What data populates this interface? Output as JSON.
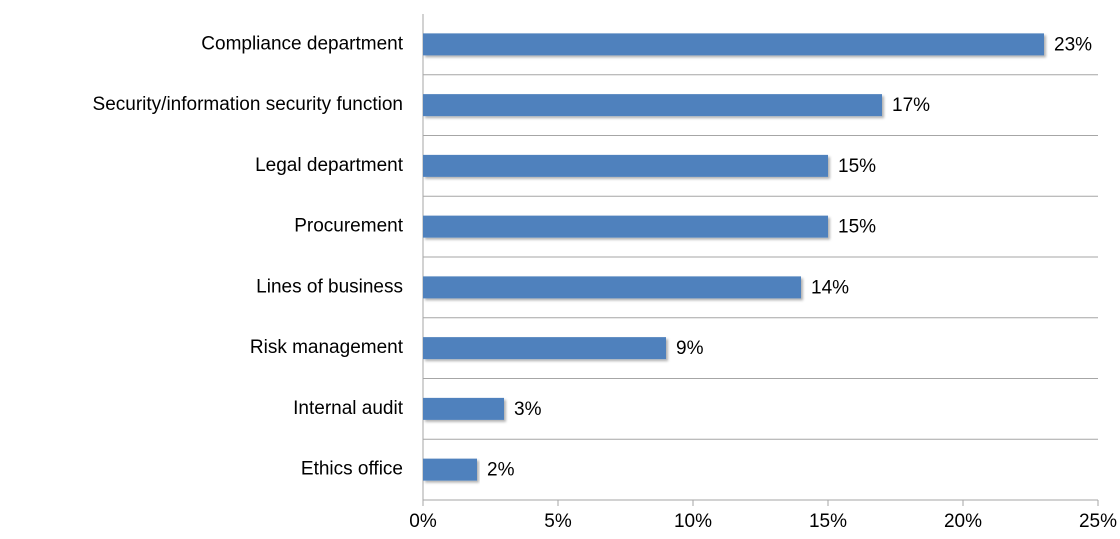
{
  "chart_data": {
    "type": "barh",
    "categories": [
      "Compliance department",
      "Security/information security function",
      "Legal department",
      "Procurement",
      "Lines of business",
      "Risk management",
      "Internal audit",
      "Ethics office"
    ],
    "values": [
      23,
      17,
      15,
      15,
      14,
      9,
      3,
      2
    ],
    "value_labels": [
      "23%",
      "17%",
      "15%",
      "15%",
      "14%",
      "9%",
      "3%",
      "2%"
    ],
    "color": "#4f81bd",
    "xlim": [
      0,
      25
    ],
    "xticks": [
      {
        "value": 0,
        "label": "0%"
      },
      {
        "value": 5,
        "label": "5%"
      },
      {
        "value": 10,
        "label": "10%"
      },
      {
        "value": 15,
        "label": "15%"
      },
      {
        "value": 20,
        "label": "20%"
      },
      {
        "value": 25,
        "label": "25%"
      }
    ]
  }
}
